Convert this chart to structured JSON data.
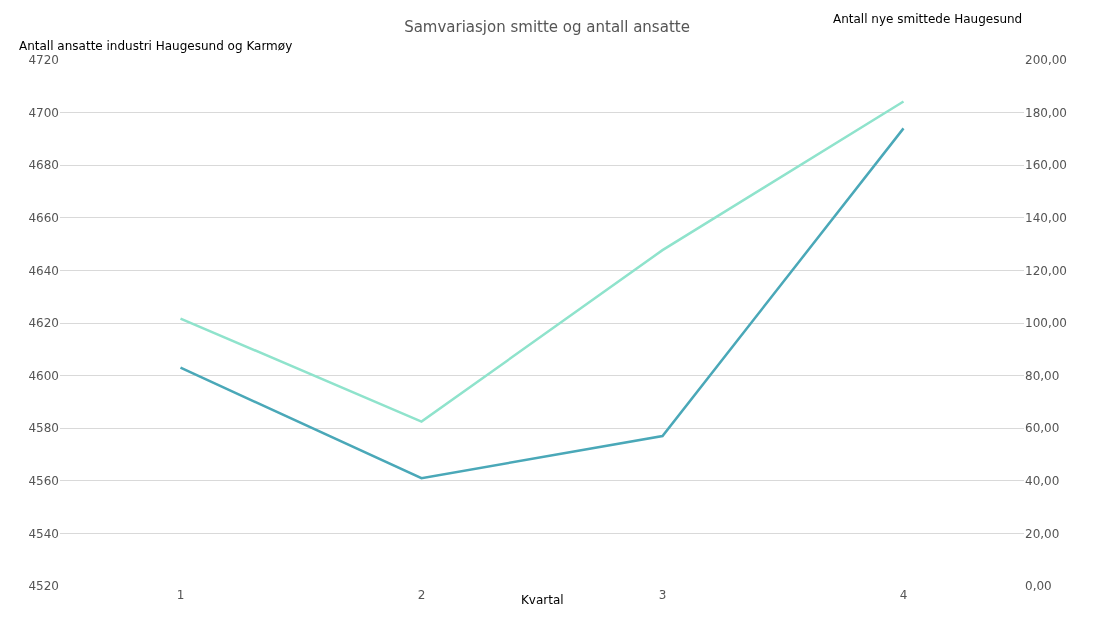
{
  "chart_data": {
    "type": "line",
    "title": "Samvariasjon smitte og antall ansatte",
    "xlabel": "Kvartal",
    "ylabel": "Antall ansatte industri Haugesund og Karmøy",
    "y2label": "Antall nye smittede Haugesund",
    "categories": [
      "1",
      "2",
      "3",
      "4"
    ],
    "series": [
      {
        "color": "#4aa8b8",
        "values": [
          4603,
          4561,
          4577,
          4694
        ]
      },
      {
        "color": "#8fe3cc",
        "values": [
          101.7,
          62.5,
          127.7,
          184.2
        ],
        "axis": "y2"
      }
    ],
    "ylim": [
      4520,
      4720
    ],
    "yticks": [
      4520,
      4540,
      4560,
      4580,
      4600,
      4620,
      4640,
      4660,
      4680,
      4700,
      4720
    ],
    "y2lim": [
      0,
      200
    ],
    "y2ticks": [
      {
        "value": 0,
        "label": "0,00"
      },
      {
        "value": 20,
        "label": "20,00"
      },
      {
        "value": 40,
        "label": "40,00"
      },
      {
        "value": 60,
        "label": "60,00"
      },
      {
        "value": 80,
        "label": "80,00"
      },
      {
        "value": 100,
        "label": "100,00"
      },
      {
        "value": 120,
        "label": "120,00"
      },
      {
        "value": 140,
        "label": "140,00"
      },
      {
        "value": 160,
        "label": "160,00"
      },
      {
        "value": 180,
        "label": "180,00"
      },
      {
        "value": 200,
        "label": "200,00"
      }
    ],
    "grid": "y",
    "marker": "none",
    "line_style": "solid"
  }
}
